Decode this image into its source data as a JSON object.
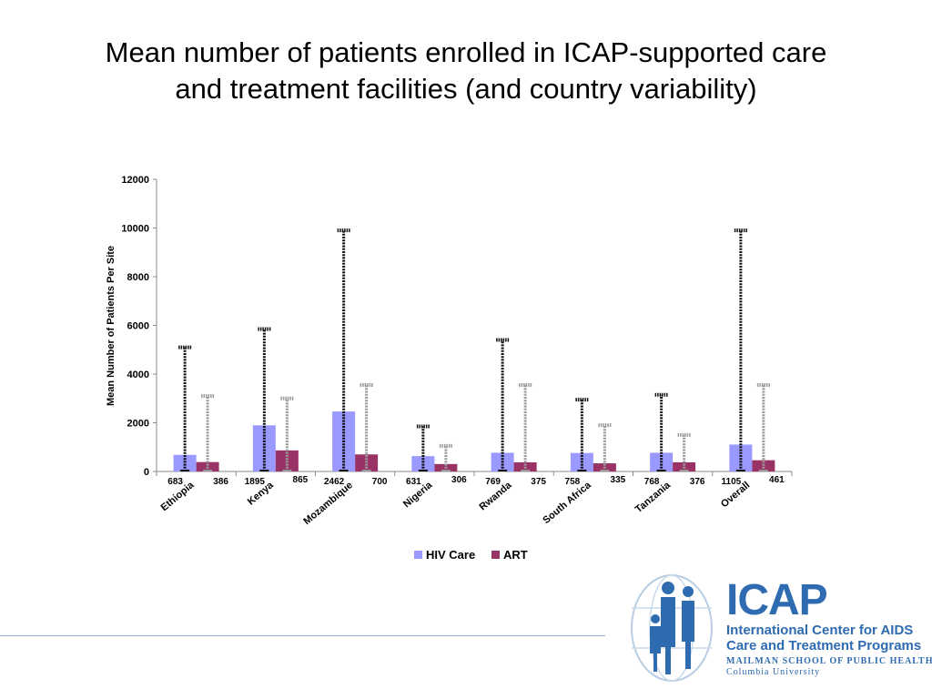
{
  "slide": {
    "title_line1": "Mean number of patients enrolled in ICAP-supported care",
    "title_line2": "and treatment facilities (and country variability)"
  },
  "logo": {
    "name": "ICAP",
    "subtitle_line1": "International Center for AIDS",
    "subtitle_line2": "Care and Treatment Programs",
    "school": "MAILMAN SCHOOL OF PUBLIC HEALTH",
    "university": "Columbia University",
    "color": "#2f6bb0"
  },
  "chart_data": {
    "type": "bar",
    "categories": [
      "Ethiopia",
      "Kenya",
      "Mozambique",
      "Nigeria",
      "Rwanda",
      "South Africa",
      "Tanzania",
      "Overall"
    ],
    "series": [
      {
        "name": "HIV Care",
        "color": "#9999ff",
        "values": [
          683,
          1895,
          2462,
          631,
          769,
          758,
          768,
          1105
        ],
        "range_max": [
          5100,
          5850,
          9900,
          1850,
          5400,
          2950,
          3150,
          9900
        ]
      },
      {
        "name": "ART",
        "color": "#993366",
        "values": [
          386,
          865,
          700,
          306,
          375,
          335,
          376,
          461
        ],
        "range_max": [
          3100,
          3000,
          3550,
          1050,
          3550,
          1900,
          1500,
          3550
        ]
      }
    ],
    "value_labels": [
      [
        "683",
        "1895",
        "2462",
        "631",
        "769",
        "758",
        "768",
        "1105"
      ],
      [
        "386",
        "865",
        "700",
        "306",
        "375",
        "335",
        "376",
        "461"
      ]
    ],
    "ylabel": "Mean Number of Patients Per Site",
    "xlabel": "",
    "ylim": [
      0,
      12000
    ],
    "yticks": [
      0,
      2000,
      4000,
      6000,
      8000,
      10000,
      12000
    ],
    "legend_position": "bottom",
    "grid": false
  }
}
